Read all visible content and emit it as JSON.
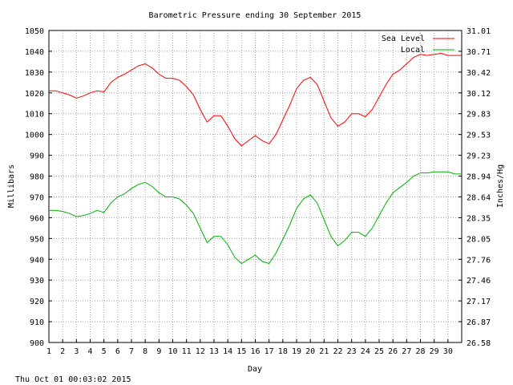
{
  "chart_data": {
    "type": "line",
    "title": "Barometric Pressure ending 30 September 2015",
    "xlabel": "Day",
    "ylabel": "Millibars",
    "y2label": "Inches/Hg",
    "timestamp": "Thu Oct 01 00:03:02 2015",
    "x_ticks": [
      "1",
      "2",
      "3",
      "4",
      "5",
      "6",
      "7",
      "8",
      "9",
      "10",
      "11",
      "12",
      "13",
      "14",
      "15",
      "16",
      "17",
      "18",
      "19",
      "20",
      "21",
      "22",
      "23",
      "24",
      "25",
      "26",
      "27",
      "28",
      "29",
      "30"
    ],
    "y_ticks": [
      900,
      910,
      920,
      930,
      940,
      950,
      960,
      970,
      980,
      990,
      1000,
      1010,
      1020,
      1030,
      1040,
      1050
    ],
    "y2_ticks": [
      "26.58",
      "26.87",
      "27.17",
      "27.46",
      "27.76",
      "28.05",
      "28.35",
      "28.64",
      "28.94",
      "29.23",
      "29.53",
      "29.83",
      "30.12",
      "30.42",
      "30.71",
      "31.01"
    ],
    "ylim": [
      900,
      1050
    ],
    "xlim": [
      1,
      31
    ],
    "grid": true,
    "legend_position": "top-right",
    "series": [
      {
        "name": "Sea Level",
        "color": "#ff0000",
        "x": [
          1,
          1.5,
          2,
          2.5,
          3,
          3.5,
          4,
          4.5,
          5,
          5.5,
          6,
          6.5,
          7,
          7.5,
          8,
          8.5,
          9,
          9.5,
          10,
          10.5,
          11,
          11.5,
          12,
          12.5,
          13,
          13.5,
          14,
          14.5,
          15,
          15.5,
          16,
          16.5,
          17,
          17.5,
          18,
          18.5,
          19,
          19.5,
          20,
          20.5,
          21,
          21.5,
          22,
          22.5,
          23,
          23.5,
          24,
          24.5,
          25,
          25.5,
          26,
          26.5,
          27,
          27.5,
          28,
          28.5,
          29,
          29.5,
          30,
          30.5,
          31
        ],
        "values": [
          1021,
          1021,
          1020,
          1019,
          1017.5,
          1018.5,
          1020,
          1021,
          1020.5,
          1025,
          1027.5,
          1029,
          1031,
          1033,
          1034,
          1032,
          1029,
          1027,
          1027,
          1026,
          1023,
          1019,
          1012,
          1006,
          1009,
          1009,
          1004,
          998,
          994.5,
          997,
          999.5,
          997,
          995.5,
          1000,
          1007,
          1014,
          1022,
          1026,
          1027.5,
          1024,
          1016,
          1008,
          1004,
          1006,
          1010,
          1010,
          1008.5,
          1012,
          1018,
          1024,
          1029,
          1031,
          1034,
          1037,
          1038.5,
          1038,
          1038.5,
          1039,
          1038,
          1038,
          1038
        ]
      },
      {
        "name": "Local",
        "color": "#00b000",
        "x": [
          1,
          1.5,
          2,
          2.5,
          3,
          3.5,
          4,
          4.5,
          5,
          5.5,
          6,
          6.5,
          7,
          7.5,
          8,
          8.5,
          9,
          9.5,
          10,
          10.5,
          11,
          11.5,
          12,
          12.5,
          13,
          13.5,
          14,
          14.5,
          15,
          15.5,
          16,
          16.5,
          17,
          17.5,
          18,
          18.5,
          19,
          19.5,
          20,
          20.5,
          21,
          21.5,
          22,
          22.5,
          23,
          23.5,
          24,
          24.5,
          25,
          25.5,
          26,
          26.5,
          27,
          27.5,
          28,
          28.5,
          29,
          29.5,
          30,
          30.5,
          31
        ],
        "values": [
          963.5,
          963.5,
          963,
          962,
          960.5,
          961,
          962,
          963.5,
          962.5,
          967,
          970,
          971.5,
          974,
          976,
          977,
          975,
          972,
          970,
          970,
          969,
          966,
          962,
          955,
          948,
          951,
          951,
          947,
          941,
          938,
          940,
          942,
          939,
          938,
          943,
          949.5,
          956.5,
          964.5,
          969,
          971,
          967,
          959,
          951,
          946.5,
          949,
          953,
          953,
          951,
          955,
          961,
          967,
          972,
          974.5,
          977,
          980,
          981.5,
          981.5,
          982,
          982,
          982,
          981,
          981
        ]
      }
    ]
  }
}
